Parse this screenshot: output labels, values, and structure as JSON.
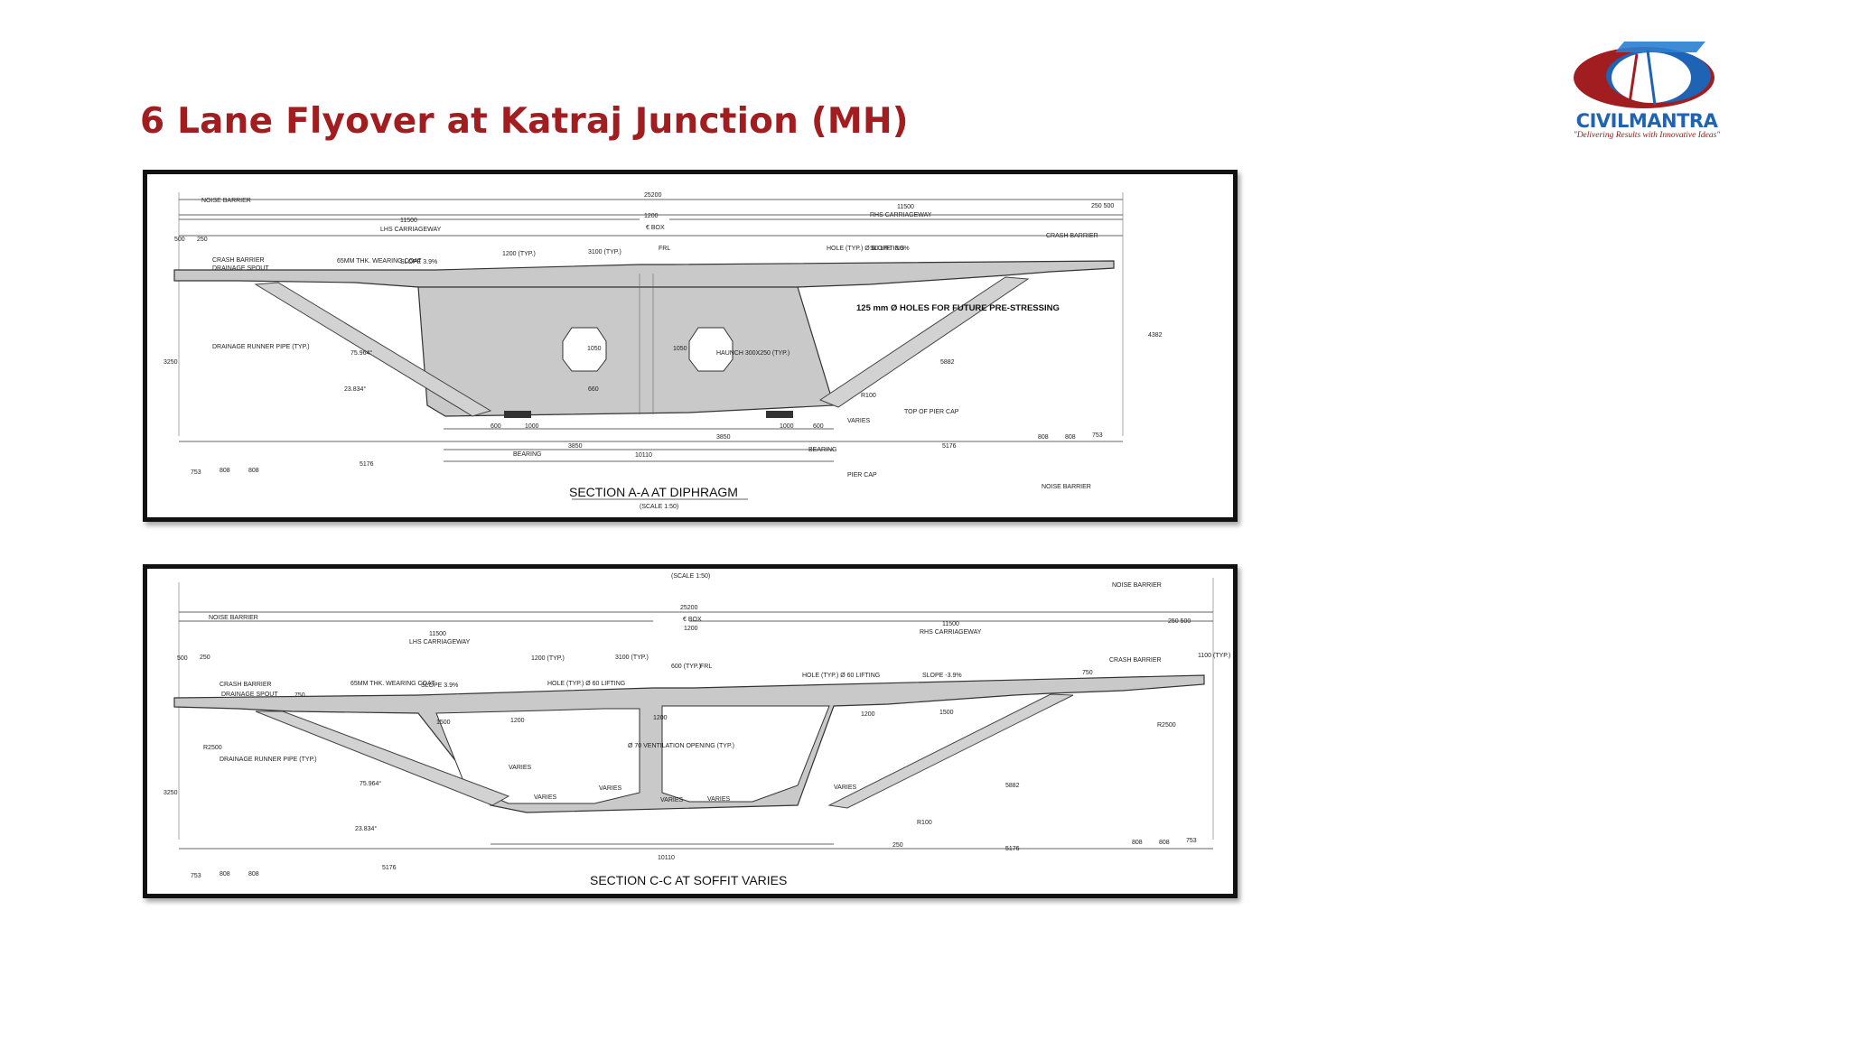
{
  "slide": {
    "title": "6 Lane Flyover at Katraj Junction (MH)"
  },
  "logo": {
    "brand_part1": "CIVIL",
    "brand_part2": "MANTRA",
    "tagline": "\"Delivering Results with Innovative Ideas\"",
    "colors": {
      "red": "#a11d1f",
      "blue": "#1f63b4"
    }
  },
  "section_a": {
    "caption": "SECTION A-A AT DIPHRAGM",
    "scale": "(SCALE 1:50)",
    "labels": {
      "noise_barrier_top": "NOISE BARRIER",
      "overall_width": "25200",
      "lhs_width": "11500",
      "lhs_carriageway": "LHS CARRIAGEWAY",
      "rhs_width": "11500",
      "rhs_carriageway": "RHS CARRIAGEWAY",
      "median": "1200",
      "box": "€ BOX",
      "frl": "FRL",
      "d500": "500",
      "d250": "250",
      "d250_500": "250 500",
      "crash_barrier_l": "CRASH BARRIER",
      "drainage_spout": "DRAINAGE SPOUT",
      "wearing_coat": "65MM THK. WEARING COAT",
      "slope_l": "SLOPE 3.9%",
      "d1200_typ": "1200 (TYP.)",
      "d3100_typ": "3100 (TYP.)",
      "hole_lifting": "HOLE (TYP.) Ø 60 LIFTING",
      "slope_r": "SLOPE -3.9%",
      "crash_barrier_r": "CRASH BARRIER",
      "holes_prestress": "125 mm Ø HOLES FOR FUTURE PRE-STRESSING",
      "haunch": "HAUNCH 300X250 (TYP.)",
      "drainage_runner": "DRAINAGE RUNNER PIPE (TYP.)",
      "d1050a": "1050",
      "d1050b": "1050",
      "d1200v": "1200",
      "d660": "660",
      "d5882": "5882",
      "r100": "R100",
      "top_pier_cap": "TOP OF PIER CAP",
      "d3250": "3250",
      "d4382": "4382",
      "d600l": "600",
      "d1000l": "1000",
      "d1000r": "1000",
      "d600r": "600",
      "d3850l": "3850",
      "d3850r": "3850",
      "d10110": "10110",
      "bearing_l": "BEARING",
      "bearing_r": "BEARING",
      "varies": "VARIES",
      "d5176l": "5176",
      "d5176r": "5176",
      "d753l": "753",
      "d808l1": "808",
      "d808l2": "808",
      "d808r1": "808",
      "d808r2": "808",
      "d753r": "753",
      "pier_cap": "PIER CAP",
      "noise_barrier_bot": "NOISE BARRIER",
      "angle1": "75.964°",
      "angle2": "23.834°"
    }
  },
  "section_c": {
    "caption": "SECTION C-C AT SOFFIT VARIES",
    "scale": "(SCALE 1:50)",
    "labels": {
      "noise_barrier_r": "NOISE BARRIER",
      "noise_barrier_l": "NOISE BARRIER",
      "overall_width": "25200",
      "box": "€ BOX",
      "median": "1200",
      "lhs_width": "11500",
      "lhs_carriageway": "LHS CARRIAGEWAY",
      "rhs_width": "11500",
      "rhs_carriageway": "RHS CARRIAGEWAY",
      "d250_500": "250 500",
      "d500": "500",
      "d250": "250",
      "d1200_typ": "1200 (TYP.)",
      "d3100_typ": "3100 (TYP.)",
      "d600_typ": "600 (TYP.)",
      "frl": "FRL",
      "d1100_typ": "1100 (TYP.)",
      "crash_barrier_l": "CRASH BARRIER",
      "drainage_spout": "DRAINAGE SPOUT",
      "d750l": "750",
      "wearing_coat": "65MM THK. WEARING COAT",
      "slope_l": "SLOPE 3.9%",
      "hole_lifting_l": "HOLE (TYP.) Ø 60 LIFTING",
      "hole_lifting_r": "HOLE (TYP.) Ø 60 LIFTING",
      "slope_r": "SLOPE -3.9%",
      "d750r": "750",
      "crash_barrier_r": "CRASH BARRIER",
      "d1500l": "1500",
      "d1200a": "1200",
      "d1200b": "1200",
      "d1200c": "1200",
      "d1500r": "1500",
      "d2500l": "R2500",
      "d2500r": "R2500",
      "vent": "Ø 70 VENTILATION OPENING (TYP.)",
      "drainage_runner": "DRAINAGE RUNNER PIPE (TYP.)",
      "d3250": "3250",
      "varies1": "VARIES",
      "varies2": "VARIES",
      "varies3": "VARIES",
      "varies4": "VARIES",
      "varies5": "VARIES",
      "varies6": "VARIES",
      "d5882": "5882",
      "r100": "R100",
      "d250b": "250",
      "d10110": "10110",
      "d5176l": "5176",
      "d5176r": "5176",
      "d753l": "753",
      "d808l1": "808",
      "d808l2": "808",
      "d808r1": "808",
      "d808r2": "808",
      "d753r": "753",
      "angle1": "75.964°",
      "angle2": "23.834°"
    }
  }
}
